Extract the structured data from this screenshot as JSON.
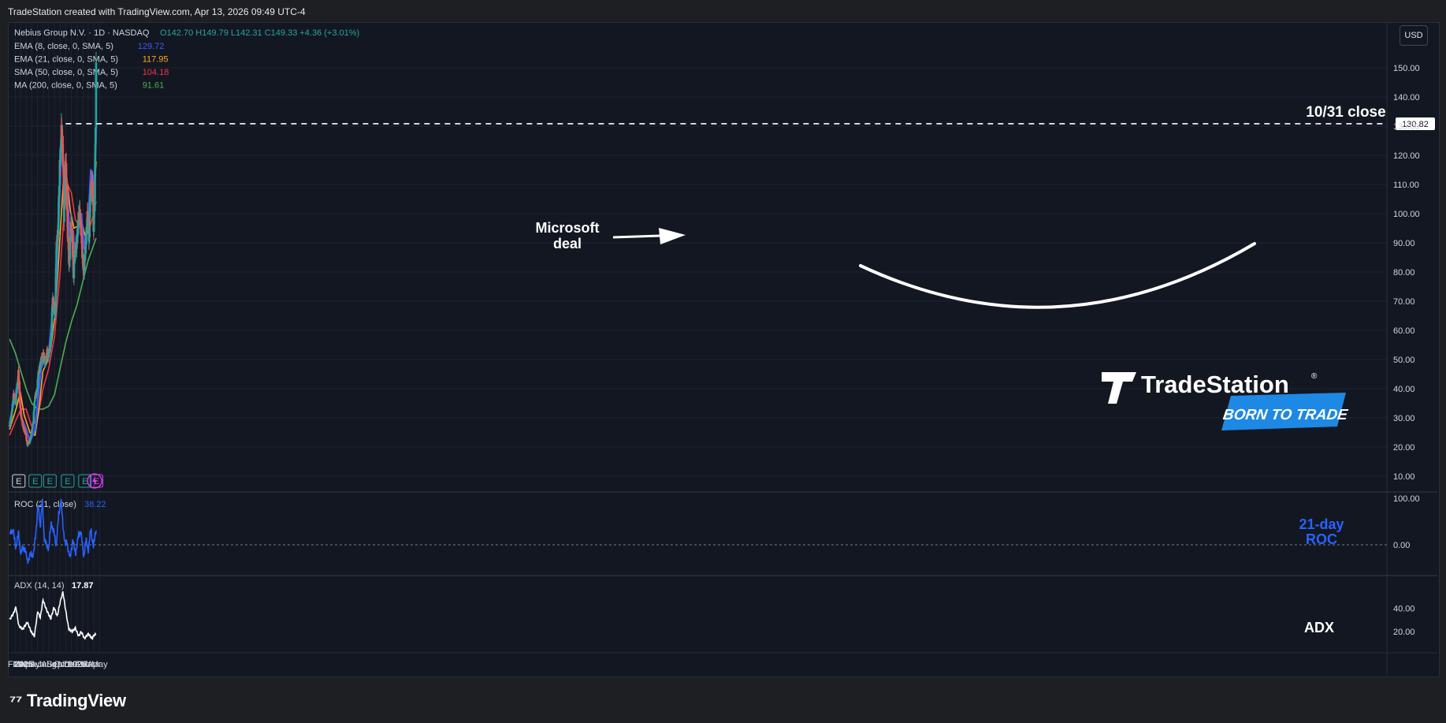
{
  "header": {
    "text": "TradeStation created with TradingView.com, Apr 13, 2026 09:49 UTC-4"
  },
  "footer": {
    "brand": "TradingView"
  },
  "currency_button": "USD",
  "legend": {
    "symbol": "Nebius Group N.V. · 1D · NASDAQ",
    "ohlc": "O142.70 H149.79 L142.31 C149.33 +4.36 (+3.01%)",
    "indicators": [
      {
        "label": "EMA (8, close, 0, SMA, 5)",
        "value": "129.72",
        "color": "#3b5bfd"
      },
      {
        "label": "EMA (21, close, 0, SMA, 5)",
        "value": "117.95",
        "color": "#ffa726"
      },
      {
        "label": "SMA (50, close, 0, SMA, 5)",
        "value": "104.18",
        "color": "#f23645"
      },
      {
        "label": "MA (200, close, 0, SMA, 5)",
        "value": "91.61",
        "color": "#4caf50"
      }
    ]
  },
  "annotations": {
    "microsoft": [
      "Microsoft",
      "deal"
    ],
    "close_label": "10/31 close",
    "roc_label": [
      "21-day",
      "ROC"
    ],
    "adx_label": "ADX",
    "brand_name": "TradeStation",
    "brand_tag": "BORN TO TRADE"
  },
  "chart_data": [
    {
      "type": "candlestick",
      "title": "Nebius Group N.V. · 1D · NASDAQ",
      "ylim": [
        5,
        155
      ],
      "y_ticks": [
        "150.00",
        "140.00",
        "130.00",
        "120.00",
        "110.00",
        "100.00",
        "90.00",
        "80.00",
        "70.00",
        "60.00",
        "50.00",
        "40.00",
        "30.00",
        "20.00",
        "10.00"
      ],
      "x_ticks": [
        "2025",
        "Feb",
        "Mar",
        "Apr",
        "May",
        "Jun",
        "Jul",
        "Aug",
        "Sep",
        "Oct",
        "Nov",
        "Dec",
        "2026",
        "Feb",
        "Mar",
        "Apr",
        "May"
      ],
      "price_tag": "130.82",
      "reference_line": {
        "value": 130.82,
        "from": "2025-10-31",
        "style": "dashed",
        "color": "#ffffff"
      },
      "price_path": [
        [
          "2025-01-02",
          27
        ],
        [
          "2025-01-13",
          32
        ],
        [
          "2025-01-24",
          38
        ],
        [
          "2025-02-04",
          35
        ],
        [
          "2025-02-18",
          46
        ],
        [
          "2025-02-28",
          33
        ],
        [
          "2025-03-14",
          27
        ],
        [
          "2025-03-28",
          25
        ],
        [
          "2025-04-07",
          21
        ],
        [
          "2025-04-21",
          22
        ],
        [
          "2025-05-06",
          27
        ],
        [
          "2025-05-19",
          37
        ],
        [
          "2025-05-30",
          40
        ],
        [
          "2025-06-09",
          47
        ],
        [
          "2025-06-20",
          49
        ],
        [
          "2025-07-01",
          52
        ],
        [
          "2025-07-11",
          49
        ],
        [
          "2025-07-22",
          52
        ],
        [
          "2025-08-01",
          52
        ],
        [
          "2025-08-12",
          55
        ],
        [
          "2025-08-20",
          70
        ],
        [
          "2025-08-29",
          68
        ],
        [
          "2025-09-05",
          67
        ],
        [
          "2025-09-11",
          87
        ],
        [
          "2025-09-19",
          95
        ],
        [
          "2025-09-29",
          115
        ],
        [
          "2025-10-08",
          130
        ],
        [
          "2025-10-15",
          122
        ],
        [
          "2025-10-22",
          100
        ],
        [
          "2025-10-31",
          118
        ],
        [
          "2025-11-10",
          95
        ],
        [
          "2025-11-18",
          82
        ],
        [
          "2025-11-28",
          96
        ],
        [
          "2025-12-05",
          92
        ],
        [
          "2025-12-12",
          80
        ],
        [
          "2025-12-19",
          85
        ],
        [
          "2026-01-05",
          95
        ],
        [
          "2026-01-14",
          102
        ],
        [
          "2026-01-23",
          92
        ],
        [
          "2026-01-31",
          84
        ],
        [
          "2026-02-06",
          80
        ],
        [
          "2026-02-16",
          90
        ],
        [
          "2026-02-27",
          100
        ],
        [
          "2026-03-06",
          92
        ],
        [
          "2026-03-16",
          110
        ],
        [
          "2026-03-24",
          110
        ],
        [
          "2026-03-30",
          92
        ],
        [
          "2026-04-06",
          108
        ],
        [
          "2026-04-13",
          149.33
        ]
      ],
      "series": [
        {
          "name": "EMA (8, close, 0, SMA, 5)",
          "last": 129.72,
          "color": "#3b5bfd",
          "points": [
            [
              "2025-01-02",
              28
            ],
            [
              "2025-01-24",
              35
            ],
            [
              "2025-02-18",
              43
            ],
            [
              "2025-03-07",
              30
            ],
            [
              "2025-04-01",
              26
            ],
            [
              "2025-04-21",
              22
            ],
            [
              "2025-05-19",
              26
            ],
            [
              "2025-06-09",
              40
            ],
            [
              "2025-06-20",
              47
            ],
            [
              "2025-07-11",
              50
            ],
            [
              "2025-08-01",
              52
            ],
            [
              "2025-08-20",
              65
            ],
            [
              "2025-09-05",
              67
            ],
            [
              "2025-09-15",
              85
            ],
            [
              "2025-09-29",
              108
            ],
            [
              "2025-10-10",
              128
            ],
            [
              "2025-10-22",
              110
            ],
            [
              "2025-10-31",
              117
            ],
            [
              "2025-11-10",
              105
            ],
            [
              "2025-11-25",
              90
            ],
            [
              "2025-12-10",
              94
            ],
            [
              "2025-12-19",
              84
            ],
            [
              "2026-01-10",
              96
            ],
            [
              "2026-01-23",
              100
            ],
            [
              "2026-02-06",
              88
            ],
            [
              "2026-02-20",
              94
            ],
            [
              "2026-03-02",
              97
            ],
            [
              "2026-03-16",
              115
            ],
            [
              "2026-03-26",
              113
            ],
            [
              "2026-04-02",
              104
            ],
            [
              "2026-04-13",
              129.72
            ]
          ]
        },
        {
          "name": "EMA (21, close, 0, SMA, 5)",
          "last": 117.95,
          "color": "#ffa726",
          "points": [
            [
              "2025-01-02",
              26
            ],
            [
              "2025-02-10",
              34
            ],
            [
              "2025-02-28",
              39
            ],
            [
              "2025-03-21",
              31
            ],
            [
              "2025-04-21",
              25
            ],
            [
              "2025-05-19",
              24
            ],
            [
              "2025-06-09",
              33
            ],
            [
              "2025-06-30",
              46
            ],
            [
              "2025-07-22",
              49
            ],
            [
              "2025-08-12",
              54
            ],
            [
              "2025-09-05",
              66
            ],
            [
              "2025-09-19",
              80
            ],
            [
              "2025-10-08",
              100
            ],
            [
              "2025-10-22",
              115
            ],
            [
              "2025-11-05",
              113
            ],
            [
              "2025-11-25",
              101
            ],
            [
              "2025-12-15",
              95
            ],
            [
              "2026-01-10",
              96
            ],
            [
              "2026-01-23",
              98
            ],
            [
              "2026-02-13",
              92
            ],
            [
              "2026-03-02",
              94
            ],
            [
              "2026-03-16",
              106
            ],
            [
              "2026-03-30",
              104
            ],
            [
              "2026-04-13",
              117.95
            ]
          ]
        },
        {
          "name": "SMA (50, close, 0, SMA, 5)",
          "last": 104.18,
          "color": "#f23645",
          "points": [
            [
              "2025-01-02",
              24
            ],
            [
              "2025-02-03",
              29
            ],
            [
              "2025-03-03",
              33
            ],
            [
              "2025-04-01",
              33
            ],
            [
              "2025-05-01",
              27
            ],
            [
              "2025-06-02",
              30
            ],
            [
              "2025-07-01",
              40
            ],
            [
              "2025-08-01",
              47
            ],
            [
              "2025-09-01",
              58
            ],
            [
              "2025-10-01",
              80
            ],
            [
              "2025-10-22",
              100
            ],
            [
              "2025-11-10",
              110
            ],
            [
              "2025-12-01",
              107
            ],
            [
              "2025-12-22",
              98
            ],
            [
              "2026-01-20",
              95
            ],
            [
              "2026-02-16",
              93
            ],
            [
              "2026-03-09",
              95
            ],
            [
              "2026-03-30",
              100
            ],
            [
              "2026-04-13",
              104.18
            ]
          ]
        },
        {
          "name": "MA (200, close, 0, SMA, 5)",
          "last": 91.61,
          "color": "#4caf50",
          "points": [
            [
              "2025-01-02",
              57
            ],
            [
              "2025-02-03",
              52
            ],
            [
              "2025-03-03",
              46
            ],
            [
              "2025-04-01",
              40
            ],
            [
              "2025-05-01",
              35
            ],
            [
              "2025-06-02",
              33
            ],
            [
              "2025-07-01",
              33
            ],
            [
              "2025-08-01",
              34
            ],
            [
              "2025-09-01",
              38
            ],
            [
              "2025-10-01",
              47
            ],
            [
              "2025-11-01",
              56
            ],
            [
              "2025-12-01",
              63
            ],
            [
              "2026-01-01",
              69
            ],
            [
              "2026-02-01",
              77
            ],
            [
              "2026-03-01",
              84
            ],
            [
              "2026-04-13",
              91.61
            ]
          ]
        }
      ],
      "earnings_markers": [
        "2025-02-20",
        "2025-05-20",
        "2025-08-07",
        "2025-11-11",
        "2026-02-12",
        "2026-04-15"
      ]
    },
    {
      "type": "line",
      "title": "ROC (21, close)",
      "last": 38.22,
      "color": "#2962ff",
      "ylim": [
        -50,
        110
      ],
      "y_ticks": [
        "100.00",
        "0.00"
      ],
      "points": [
        [
          "2025-01-02",
          20
        ],
        [
          "2025-01-20",
          35
        ],
        [
          "2025-02-03",
          -5
        ],
        [
          "2025-02-18",
          25
        ],
        [
          "2025-03-03",
          -15
        ],
        [
          "2025-03-24",
          -5
        ],
        [
          "2025-04-07",
          -35
        ],
        [
          "2025-04-28",
          -20
        ],
        [
          "2025-05-12",
          -20
        ],
        [
          "2025-05-23",
          25
        ],
        [
          "2025-06-04",
          85
        ],
        [
          "2025-06-16",
          40
        ],
        [
          "2025-06-27",
          90
        ],
        [
          "2025-07-08",
          15
        ],
        [
          "2025-07-21",
          -5
        ],
        [
          "2025-08-01",
          -5
        ],
        [
          "2025-08-15",
          50
        ],
        [
          "2025-08-29",
          25
        ],
        [
          "2025-09-10",
          0
        ],
        [
          "2025-09-22",
          60
        ],
        [
          "2025-10-06",
          100
        ],
        [
          "2025-10-16",
          40
        ],
        [
          "2025-10-30",
          0
        ],
        [
          "2025-11-07",
          5
        ],
        [
          "2025-11-24",
          -30
        ],
        [
          "2025-12-08",
          10
        ],
        [
          "2025-12-22",
          -20
        ],
        [
          "2026-01-09",
          20
        ],
        [
          "2026-01-20",
          30
        ],
        [
          "2026-02-05",
          -25
        ],
        [
          "2026-02-17",
          10
        ],
        [
          "2026-03-02",
          -10
        ],
        [
          "2026-03-16",
          35
        ],
        [
          "2026-03-30",
          -5
        ],
        [
          "2026-04-13",
          38.22
        ]
      ]
    },
    {
      "type": "line",
      "title": "ADX (14, 14)",
      "last": 17.87,
      "color": "#ffffff",
      "ylim": [
        5,
        60
      ],
      "y_ticks": [
        "40.00",
        "20.00"
      ],
      "points": [
        [
          "2025-01-02",
          30
        ],
        [
          "2025-01-24",
          36
        ],
        [
          "2025-02-05",
          41
        ],
        [
          "2025-02-20",
          25
        ],
        [
          "2025-03-14",
          22
        ],
        [
          "2025-04-07",
          28
        ],
        [
          "2025-04-28",
          20
        ],
        [
          "2025-05-15",
          16
        ],
        [
          "2025-06-02",
          37
        ],
        [
          "2025-06-16",
          32
        ],
        [
          "2025-07-01",
          47
        ],
        [
          "2025-07-21",
          38
        ],
        [
          "2025-08-12",
          31
        ],
        [
          "2025-08-29",
          41
        ],
        [
          "2025-09-15",
          33
        ],
        [
          "2025-10-01",
          45
        ],
        [
          "2025-10-16",
          54
        ],
        [
          "2025-10-31",
          38
        ],
        [
          "2025-11-17",
          22
        ],
        [
          "2025-12-05",
          20
        ],
        [
          "2025-12-22",
          23
        ],
        [
          "2026-01-09",
          16
        ],
        [
          "2026-01-23",
          20
        ],
        [
          "2026-02-09",
          14
        ],
        [
          "2026-03-02",
          18
        ],
        [
          "2026-03-23",
          14
        ],
        [
          "2026-04-02",
          17
        ],
        [
          "2026-04-13",
          17.87
        ]
      ]
    }
  ]
}
